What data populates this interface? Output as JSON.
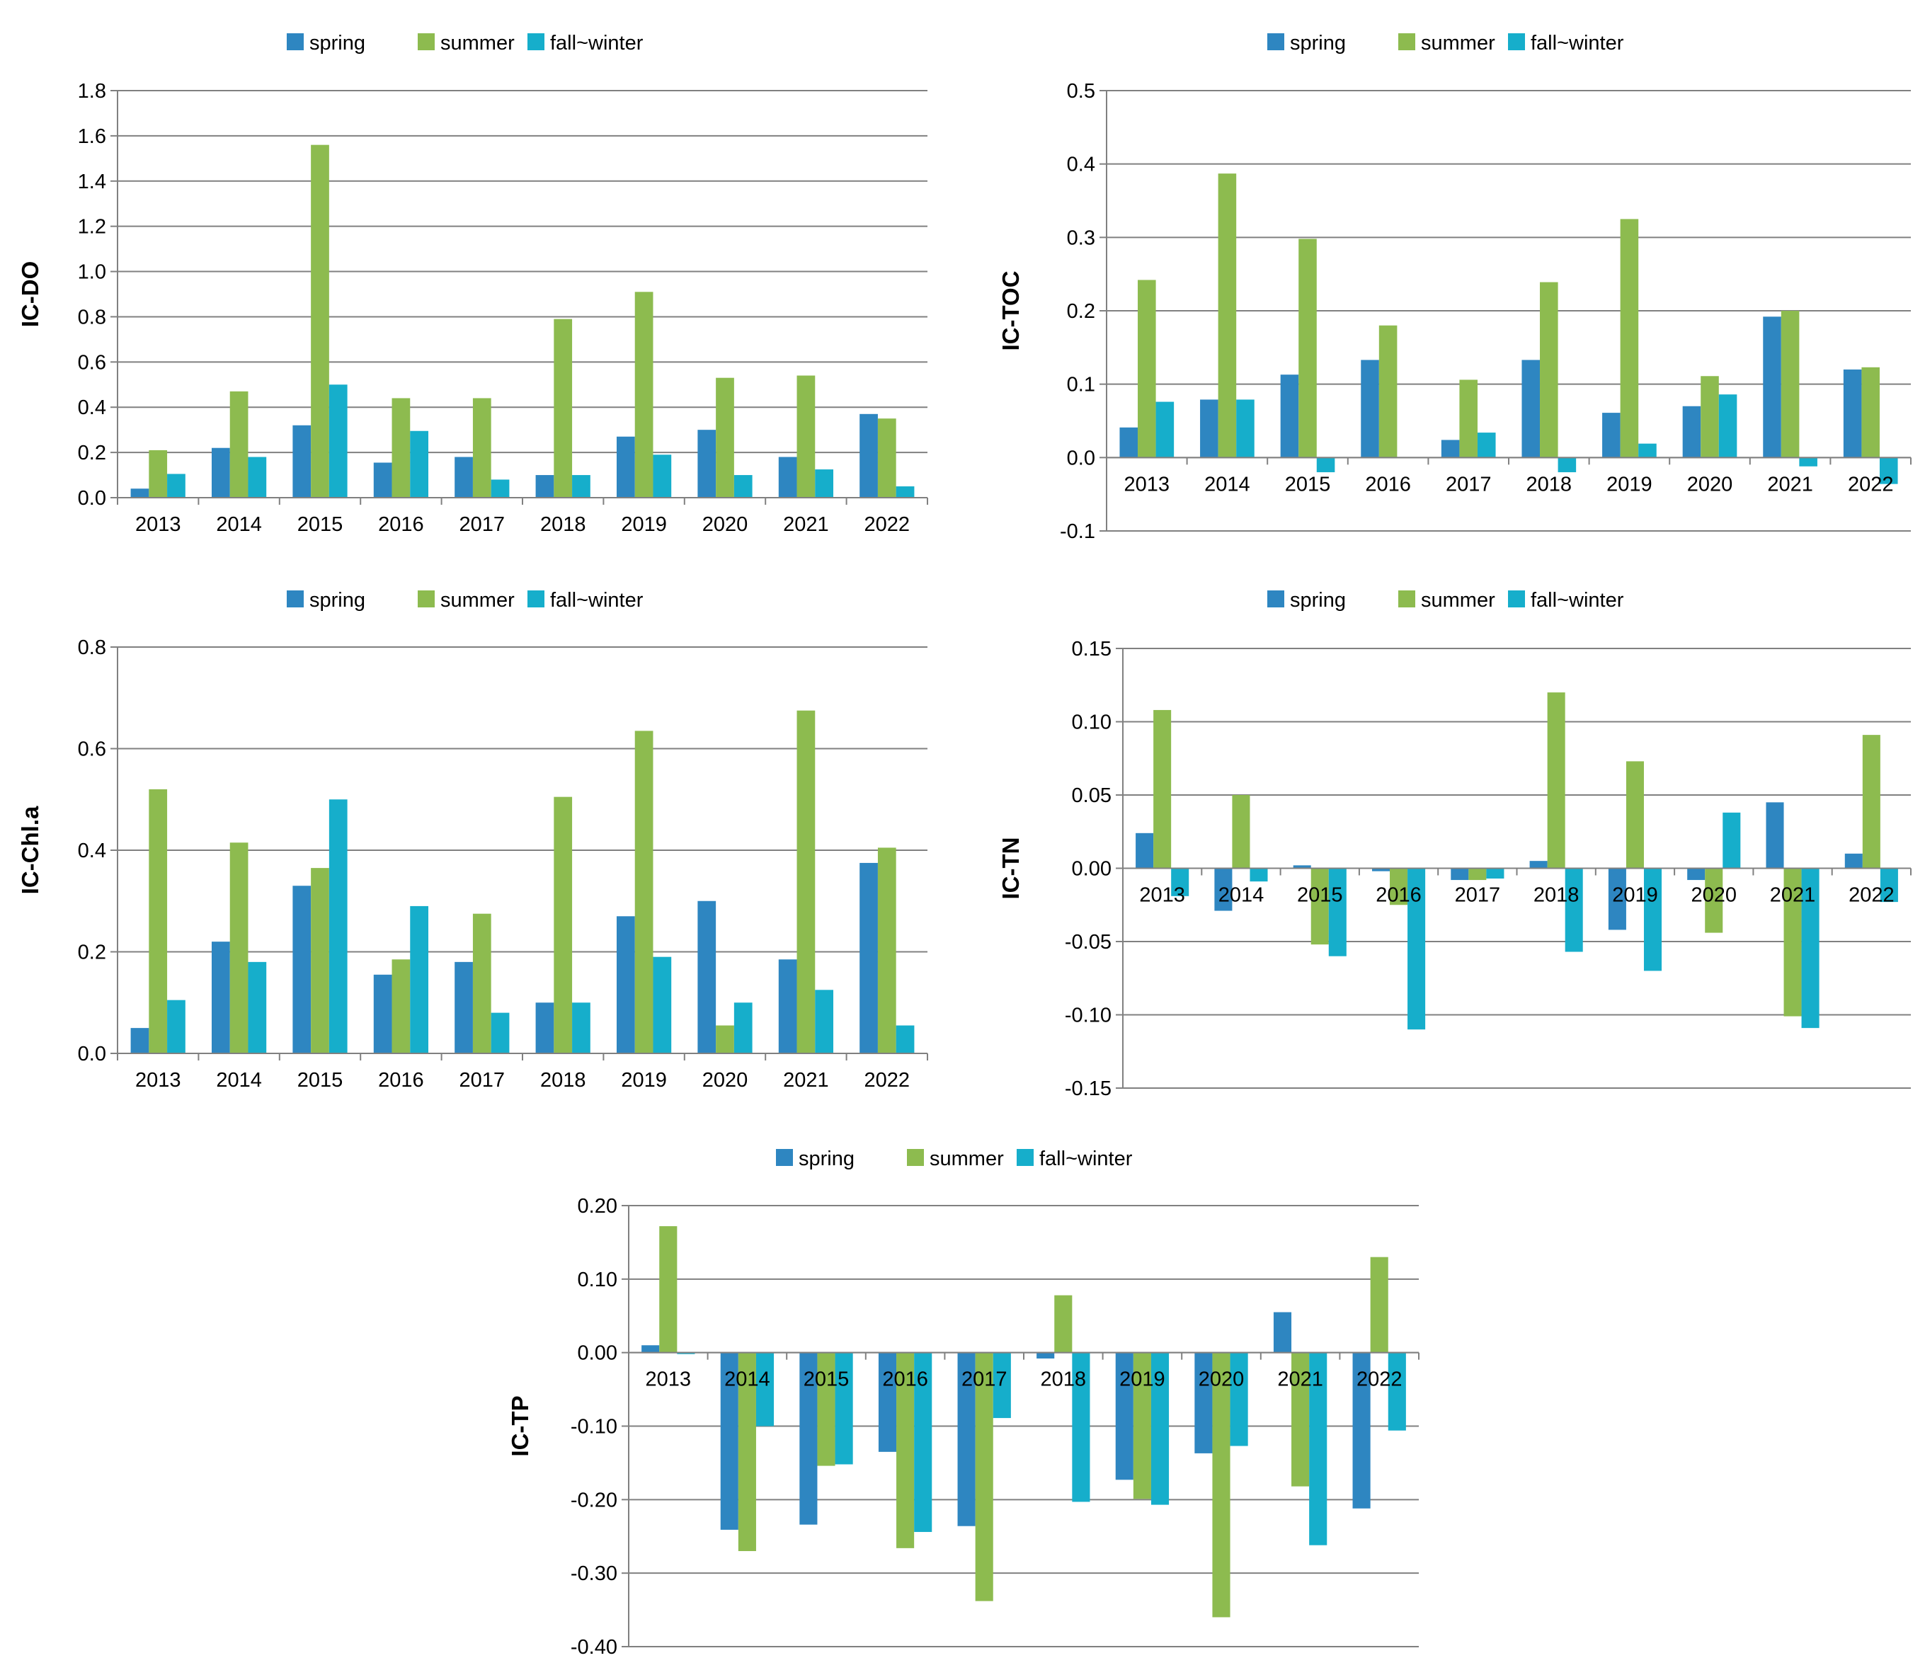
{
  "colors": {
    "spring": "#2E86C1",
    "summer": "#8DBB4F",
    "fall_winter": "#16AECB",
    "axis": "#808080",
    "grid": "#808080",
    "text": "#000000"
  },
  "legend": [
    "spring",
    "summer",
    "fall~winter"
  ],
  "chart_data": [
    {
      "id": "do",
      "type": "bar",
      "title": "",
      "xlabel": "",
      "ylabel": "IC-DO",
      "ylim": [
        0,
        1.8
      ],
      "yticks": [
        "0.0",
        "0.2",
        "0.4",
        "0.6",
        "0.8",
        "1.0",
        "1.2",
        "1.4",
        "1.6",
        "1.8"
      ],
      "categories": [
        "2013",
        "2014",
        "2015",
        "2016",
        "2017",
        "2018",
        "2019",
        "2020",
        "2021",
        "2022"
      ],
      "grid": true,
      "series": [
        {
          "name": "spring",
          "values": [
            0.04,
            0.22,
            0.32,
            0.155,
            0.18,
            0.1,
            0.27,
            0.3,
            0.18,
            0.37
          ]
        },
        {
          "name": "summer",
          "values": [
            0.21,
            0.47,
            1.56,
            0.44,
            0.44,
            0.79,
            0.91,
            0.53,
            0.54,
            0.35
          ]
        },
        {
          "name": "fall~winter",
          "values": [
            0.105,
            0.18,
            0.5,
            0.295,
            0.08,
            0.1,
            0.19,
            0.1,
            0.125,
            0.05
          ]
        }
      ]
    },
    {
      "id": "toc",
      "type": "bar",
      "title": "",
      "xlabel": "",
      "ylabel": "IC-TOC",
      "ylim": [
        -0.1,
        0.5
      ],
      "yticks": [
        "-0.1",
        "0.0",
        "0.1",
        "0.2",
        "0.3",
        "0.4",
        "0.5"
      ],
      "categories": [
        "2013",
        "2014",
        "2015",
        "2016",
        "2017",
        "2018",
        "2019",
        "2020",
        "2021",
        "2022"
      ],
      "grid": true,
      "series": [
        {
          "name": "spring",
          "values": [
            0.041,
            0.079,
            0.113,
            0.133,
            0.024,
            0.133,
            0.061,
            0.07,
            0.192,
            0.12
          ]
        },
        {
          "name": "summer",
          "values": [
            0.242,
            0.387,
            0.298,
            0.18,
            0.106,
            0.239,
            0.325,
            0.111,
            0.2,
            0.123
          ]
        },
        {
          "name": "fall~winter",
          "values": [
            0.076,
            0.079,
            -0.02,
            0.0,
            0.034,
            -0.02,
            0.019,
            0.086,
            -0.012,
            -0.036
          ]
        }
      ]
    },
    {
      "id": "chla",
      "type": "bar",
      "title": "",
      "xlabel": "",
      "ylabel": "IC-Chl.a",
      "ylim": [
        0,
        0.8
      ],
      "yticks": [
        "0.0",
        "0.2",
        "0.4",
        "0.6",
        "0.8"
      ],
      "categories": [
        "2013",
        "2014",
        "2015",
        "2016",
        "2017",
        "2018",
        "2019",
        "2020",
        "2021",
        "2022"
      ],
      "grid": true,
      "series": [
        {
          "name": "spring",
          "values": [
            0.05,
            0.22,
            0.33,
            0.155,
            0.18,
            0.1,
            0.27,
            0.3,
            0.185,
            0.375
          ]
        },
        {
          "name": "summer",
          "values": [
            0.52,
            0.415,
            0.365,
            0.185,
            0.275,
            0.505,
            0.635,
            0.055,
            0.675,
            0.405
          ]
        },
        {
          "name": "fall~winter",
          "values": [
            0.105,
            0.18,
            0.5,
            0.29,
            0.08,
            0.1,
            0.19,
            0.1,
            0.125,
            0.055
          ]
        }
      ]
    },
    {
      "id": "tn",
      "type": "bar",
      "title": "",
      "xlabel": "",
      "ylabel": "IC-TN",
      "ylim": [
        -0.15,
        0.15
      ],
      "yticks": [
        "-0.15",
        "-0.10",
        "-0.05",
        "0.00",
        "0.05",
        "0.10",
        "0.15"
      ],
      "categories": [
        "2013",
        "2014",
        "2015",
        "2016",
        "2017",
        "2018",
        "2019",
        "2020",
        "2021",
        "2022"
      ],
      "grid": true,
      "series": [
        {
          "name": "spring",
          "values": [
            0.024,
            -0.029,
            0.002,
            -0.002,
            -0.008,
            0.005,
            -0.042,
            -0.008,
            0.045,
            0.01
          ]
        },
        {
          "name": "summer",
          "values": [
            0.108,
            0.05,
            -0.052,
            -0.025,
            -0.008,
            0.12,
            0.073,
            -0.044,
            -0.101,
            0.091
          ]
        },
        {
          "name": "fall~winter",
          "values": [
            -0.019,
            -0.009,
            -0.06,
            -0.11,
            -0.007,
            -0.057,
            -0.07,
            0.038,
            -0.109,
            -0.023
          ]
        }
      ]
    },
    {
      "id": "tp",
      "type": "bar",
      "title": "",
      "xlabel": "",
      "ylabel": "IC-TP",
      "ylim": [
        -0.4,
        0.2
      ],
      "yticks": [
        "-0.40",
        "-0.30",
        "-0.20",
        "-0.10",
        "0.00",
        "0.10",
        "0.20"
      ],
      "categories": [
        "2013",
        "2014",
        "2015",
        "2016",
        "2017",
        "2018",
        "2019",
        "2020",
        "2021",
        "2022"
      ],
      "grid": true,
      "series": [
        {
          "name": "spring",
          "values": [
            0.01,
            -0.241,
            -0.234,
            -0.135,
            -0.236,
            -0.008,
            -0.173,
            -0.137,
            0.055,
            -0.212
          ]
        },
        {
          "name": "summer",
          "values": [
            0.172,
            -0.27,
            -0.154,
            -0.266,
            -0.338,
            0.078,
            -0.199,
            -0.36,
            -0.182,
            0.13
          ]
        },
        {
          "name": "fall~winter",
          "values": [
            -0.002,
            -0.1,
            -0.152,
            -0.244,
            -0.089,
            -0.203,
            -0.207,
            -0.127,
            -0.262,
            -0.106
          ]
        }
      ]
    }
  ]
}
